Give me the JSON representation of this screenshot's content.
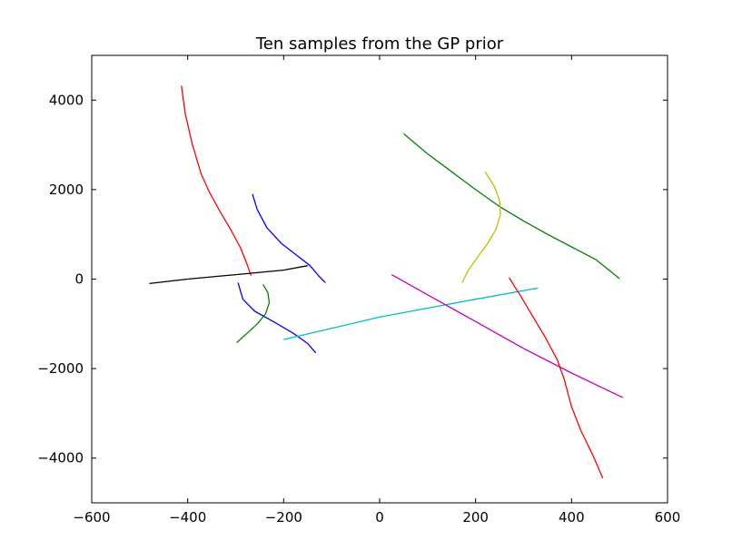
{
  "chart_data": {
    "type": "line",
    "title": "Ten samples from the GP prior",
    "xlabel": "",
    "ylabel": "",
    "xlim": [
      -600,
      600
    ],
    "ylim": [
      -5000,
      5000
    ],
    "xticks": [
      -600,
      -400,
      -200,
      0,
      200,
      400,
      600
    ],
    "xtick_labels": [
      "−600",
      "−400",
      "−200",
      "0",
      "200",
      "400",
      "600"
    ],
    "yticks": [
      -4000,
      -2000,
      0,
      2000,
      4000
    ],
    "ytick_labels": [
      "−4000",
      "−2000",
      "0",
      "2000",
      "4000"
    ],
    "grid": false,
    "legend": "none",
    "series": [
      {
        "color": "#ff0000",
        "x": [
          -413,
          -405,
          -390,
          -372,
          -355,
          -332,
          -310,
          -290,
          -277,
          -268
        ],
        "y": [
          4320,
          3700,
          3000,
          2350,
          1950,
          1500,
          1100,
          700,
          350,
          80
        ]
      },
      {
        "color": "#0000ff",
        "x": [
          -265,
          -255,
          -235,
          -205,
          -175,
          -145,
          -127,
          -113
        ],
        "y": [
          1900,
          1550,
          1150,
          800,
          550,
          300,
          70,
          -80
        ]
      },
      {
        "color": "#000000",
        "x": [
          -480,
          -400,
          -300,
          -200,
          -150
        ],
        "y": [
          -100,
          0,
          100,
          200,
          300
        ]
      },
      {
        "color": "#0000ff",
        "x": [
          -295,
          -285,
          -260,
          -220,
          -180,
          -150,
          -133
        ],
        "y": [
          -80,
          -450,
          -720,
          -960,
          -1210,
          -1440,
          -1650
        ]
      },
      {
        "color": "#008000",
        "x": [
          -298,
          -275,
          -255,
          -238,
          -230,
          -233,
          -243
        ],
        "y": [
          -1420,
          -1200,
          -1000,
          -780,
          -530,
          -300,
          -120
        ]
      },
      {
        "color": "#00bfbf",
        "x": [
          -200,
          -100,
          0,
          100,
          200,
          330
        ],
        "y": [
          -1350,
          -1100,
          -850,
          -650,
          -450,
          -200
        ]
      },
      {
        "color": "#008000",
        "x": [
          50,
          100,
          150,
          200,
          250,
          300,
          350,
          400,
          450,
          500
        ],
        "y": [
          3250,
          2800,
          2400,
          2000,
          1620,
          1300,
          1000,
          720,
          440,
          10
        ]
      },
      {
        "color": "#bfbf00",
        "x": [
          172,
          185,
          205,
          225,
          242,
          252,
          250,
          240,
          220
        ],
        "y": [
          -80,
          200,
          500,
          800,
          1100,
          1450,
          1750,
          2050,
          2400
        ]
      },
      {
        "color": "#bf00bf",
        "x": [
          25,
          100,
          200,
          300,
          400,
          507
        ],
        "y": [
          100,
          -350,
          -950,
          -1550,
          -2100,
          -2650
        ]
      },
      {
        "color": "#ff0000",
        "x": [
          270,
          295,
          320,
          345,
          370,
          385,
          400,
          420,
          445,
          465
        ],
        "y": [
          30,
          -400,
          -850,
          -1300,
          -1800,
          -2250,
          -2850,
          -3400,
          -3950,
          -4450
        ]
      }
    ]
  }
}
